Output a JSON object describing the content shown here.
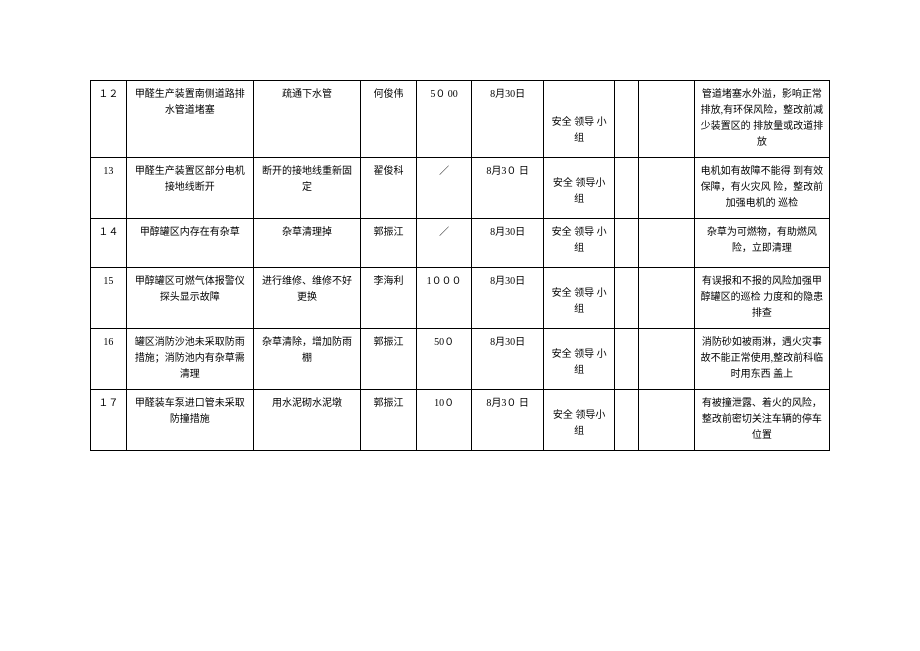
{
  "table": {
    "rows": [
      {
        "num": "１２",
        "issue": "甲醛生产装置南侧道路排水管道堵塞",
        "action": "疏通下水管",
        "person": "何俊伟",
        "cost": "5０ 00",
        "date": "8月30日",
        "group": "安全  领导  小组",
        "check": "",
        "blank": "",
        "notes": "管道堵塞水外溢，影响正常排放,有环保风险，整改前减少装置区的  排放量或改道排放"
      },
      {
        "num": "13",
        "issue": "甲醛生产装置区部分电机接地线断开",
        "action": "断开的接地线重新固定",
        "person": "翟俊科",
        "cost": "／",
        "date": "8月3０ 日",
        "group": "安全  领导小  组",
        "check": "",
        "blank": "",
        "notes": "电机如有故障不能得  到有效保障，有火灾风  险，整改前加强电机的  巡检"
      },
      {
        "num": "１４",
        "issue": "甲醇罐区内存在有杂草",
        "action": "杂草清理掉",
        "person": "郭振江",
        "cost": "／",
        "date": "8月30日",
        "group": "安全  领导  小组",
        "check": "",
        "blank": "",
        "notes": "杂草为可燃物，有助燃风险，立即清理"
      },
      {
        "num": "15",
        "issue": "甲醇罐区可燃气体报警仪探头显示故障",
        "action": "进行维修、维修不好更换",
        "person": "李海利",
        "cost": "1０００",
        "date": "8月30日",
        "group": "安全  领导  小组",
        "check": "",
        "blank": "",
        "notes": "有误报和不报的风险加强甲醇罐区的巡检  力度和的隐患排查"
      },
      {
        "num": "16",
        "issue": "罐区消防沙池未采取防雨措施；消防池内有杂草需清理",
        "action": "杂草清除，增加防雨棚",
        "person": "郭振江",
        "cost": "50０",
        "date": "8月30日",
        "group": "安全  领导  小组",
        "check": "",
        "blank": "",
        "notes": "消防砂如被雨淋，遇火灾事故不能正常使用,整改前科临时用东西  盖上"
      },
      {
        "num": "１７",
        "issue": "甲醛装车泵进口管未采取防撞措施",
        "action": "用水泥砌水泥墩",
        "person": "郭振江",
        "cost": "10０",
        "date": "8月3０ 日",
        "group": "安全  领导小  组",
        "check": "",
        "blank": "",
        "notes": "有被撞泄露、着火的风险，整改前密切关注车辆的停车位置"
      }
    ]
  }
}
